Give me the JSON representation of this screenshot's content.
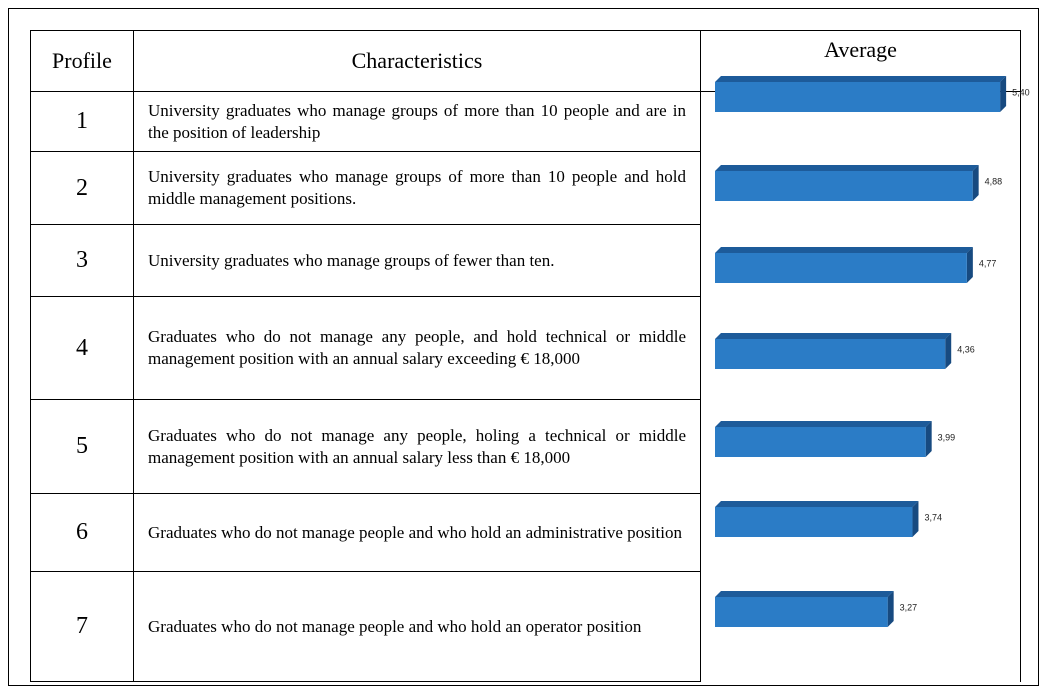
{
  "table": {
    "headers": [
      "Profile",
      "Characteristics",
      "Average"
    ],
    "rows": [
      {
        "profile": "1",
        "characteristics": "University graduates who manage groups of more than 10 people and are in the position of leadership"
      },
      {
        "profile": "2",
        "characteristics": "University graduates who manage groups of more than 10 people and hold middle management positions."
      },
      {
        "profile": "3",
        "characteristics": "University graduates who manage groups of fewer than ten."
      },
      {
        "profile": "4",
        "characteristics": "Graduates who do not manage any people, and hold technical or middle management position with an annual salary exceeding € 18,000"
      },
      {
        "profile": "5",
        "characteristics": "Graduates who do not manage any people, holing a technical or middle management position with an annual salary less than € 18,000"
      },
      {
        "profile": "6",
        "characteristics": "Graduates who do not manage people and who hold an administrative position"
      },
      {
        "profile": "7",
        "characteristics": "Graduates who do not manage people and who hold an operator position"
      }
    ],
    "averages": {
      "values": [
        5.4,
        4.88,
        4.77,
        4.36,
        3.99,
        3.74,
        3.27
      ],
      "value_labels": [
        "5,40",
        "4,88",
        "4,77",
        "4,36",
        "3,99",
        "3,74",
        "3,27"
      ],
      "color": "#2b7cc6"
    }
  }
}
